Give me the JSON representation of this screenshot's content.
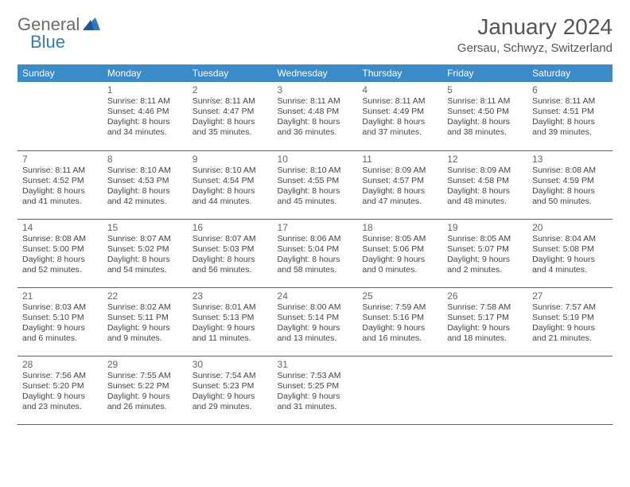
{
  "logo": {
    "general": "General",
    "blue": "Blue"
  },
  "title": "January 2024",
  "location": "Gersau, Schwyz, Switzerland",
  "colors": {
    "header_bg": "#3b8bc9",
    "header_text": "#ffffff",
    "row_border": "#2f6fa8",
    "logo_gray": "#6b6b6b",
    "logo_blue": "#2f7bbf",
    "title_color": "#555555",
    "body_text": "#444444",
    "background": "#ffffff"
  },
  "weekdays": [
    "Sunday",
    "Monday",
    "Tuesday",
    "Wednesday",
    "Thursday",
    "Friday",
    "Saturday"
  ],
  "weeks": [
    [
      null,
      {
        "n": "1",
        "sr": "Sunrise: 8:11 AM",
        "ss": "Sunset: 4:46 PM",
        "d1": "Daylight: 8 hours",
        "d2": "and 34 minutes."
      },
      {
        "n": "2",
        "sr": "Sunrise: 8:11 AM",
        "ss": "Sunset: 4:47 PM",
        "d1": "Daylight: 8 hours",
        "d2": "and 35 minutes."
      },
      {
        "n": "3",
        "sr": "Sunrise: 8:11 AM",
        "ss": "Sunset: 4:48 PM",
        "d1": "Daylight: 8 hours",
        "d2": "and 36 minutes."
      },
      {
        "n": "4",
        "sr": "Sunrise: 8:11 AM",
        "ss": "Sunset: 4:49 PM",
        "d1": "Daylight: 8 hours",
        "d2": "and 37 minutes."
      },
      {
        "n": "5",
        "sr": "Sunrise: 8:11 AM",
        "ss": "Sunset: 4:50 PM",
        "d1": "Daylight: 8 hours",
        "d2": "and 38 minutes."
      },
      {
        "n": "6",
        "sr": "Sunrise: 8:11 AM",
        "ss": "Sunset: 4:51 PM",
        "d1": "Daylight: 8 hours",
        "d2": "and 39 minutes."
      }
    ],
    [
      {
        "n": "7",
        "sr": "Sunrise: 8:11 AM",
        "ss": "Sunset: 4:52 PM",
        "d1": "Daylight: 8 hours",
        "d2": "and 41 minutes."
      },
      {
        "n": "8",
        "sr": "Sunrise: 8:10 AM",
        "ss": "Sunset: 4:53 PM",
        "d1": "Daylight: 8 hours",
        "d2": "and 42 minutes."
      },
      {
        "n": "9",
        "sr": "Sunrise: 8:10 AM",
        "ss": "Sunset: 4:54 PM",
        "d1": "Daylight: 8 hours",
        "d2": "and 44 minutes."
      },
      {
        "n": "10",
        "sr": "Sunrise: 8:10 AM",
        "ss": "Sunset: 4:55 PM",
        "d1": "Daylight: 8 hours",
        "d2": "and 45 minutes."
      },
      {
        "n": "11",
        "sr": "Sunrise: 8:09 AM",
        "ss": "Sunset: 4:57 PM",
        "d1": "Daylight: 8 hours",
        "d2": "and 47 minutes."
      },
      {
        "n": "12",
        "sr": "Sunrise: 8:09 AM",
        "ss": "Sunset: 4:58 PM",
        "d1": "Daylight: 8 hours",
        "d2": "and 48 minutes."
      },
      {
        "n": "13",
        "sr": "Sunrise: 8:08 AM",
        "ss": "Sunset: 4:59 PM",
        "d1": "Daylight: 8 hours",
        "d2": "and 50 minutes."
      }
    ],
    [
      {
        "n": "14",
        "sr": "Sunrise: 8:08 AM",
        "ss": "Sunset: 5:00 PM",
        "d1": "Daylight: 8 hours",
        "d2": "and 52 minutes."
      },
      {
        "n": "15",
        "sr": "Sunrise: 8:07 AM",
        "ss": "Sunset: 5:02 PM",
        "d1": "Daylight: 8 hours",
        "d2": "and 54 minutes."
      },
      {
        "n": "16",
        "sr": "Sunrise: 8:07 AM",
        "ss": "Sunset: 5:03 PM",
        "d1": "Daylight: 8 hours",
        "d2": "and 56 minutes."
      },
      {
        "n": "17",
        "sr": "Sunrise: 8:06 AM",
        "ss": "Sunset: 5:04 PM",
        "d1": "Daylight: 8 hours",
        "d2": "and 58 minutes."
      },
      {
        "n": "18",
        "sr": "Sunrise: 8:05 AM",
        "ss": "Sunset: 5:06 PM",
        "d1": "Daylight: 9 hours",
        "d2": "and 0 minutes."
      },
      {
        "n": "19",
        "sr": "Sunrise: 8:05 AM",
        "ss": "Sunset: 5:07 PM",
        "d1": "Daylight: 9 hours",
        "d2": "and 2 minutes."
      },
      {
        "n": "20",
        "sr": "Sunrise: 8:04 AM",
        "ss": "Sunset: 5:08 PM",
        "d1": "Daylight: 9 hours",
        "d2": "and 4 minutes."
      }
    ],
    [
      {
        "n": "21",
        "sr": "Sunrise: 8:03 AM",
        "ss": "Sunset: 5:10 PM",
        "d1": "Daylight: 9 hours",
        "d2": "and 6 minutes."
      },
      {
        "n": "22",
        "sr": "Sunrise: 8:02 AM",
        "ss": "Sunset: 5:11 PM",
        "d1": "Daylight: 9 hours",
        "d2": "and 9 minutes."
      },
      {
        "n": "23",
        "sr": "Sunrise: 8:01 AM",
        "ss": "Sunset: 5:13 PM",
        "d1": "Daylight: 9 hours",
        "d2": "and 11 minutes."
      },
      {
        "n": "24",
        "sr": "Sunrise: 8:00 AM",
        "ss": "Sunset: 5:14 PM",
        "d1": "Daylight: 9 hours",
        "d2": "and 13 minutes."
      },
      {
        "n": "25",
        "sr": "Sunrise: 7:59 AM",
        "ss": "Sunset: 5:16 PM",
        "d1": "Daylight: 9 hours",
        "d2": "and 16 minutes."
      },
      {
        "n": "26",
        "sr": "Sunrise: 7:58 AM",
        "ss": "Sunset: 5:17 PM",
        "d1": "Daylight: 9 hours",
        "d2": "and 18 minutes."
      },
      {
        "n": "27",
        "sr": "Sunrise: 7:57 AM",
        "ss": "Sunset: 5:19 PM",
        "d1": "Daylight: 9 hours",
        "d2": "and 21 minutes."
      }
    ],
    [
      {
        "n": "28",
        "sr": "Sunrise: 7:56 AM",
        "ss": "Sunset: 5:20 PM",
        "d1": "Daylight: 9 hours",
        "d2": "and 23 minutes."
      },
      {
        "n": "29",
        "sr": "Sunrise: 7:55 AM",
        "ss": "Sunset: 5:22 PM",
        "d1": "Daylight: 9 hours",
        "d2": "and 26 minutes."
      },
      {
        "n": "30",
        "sr": "Sunrise: 7:54 AM",
        "ss": "Sunset: 5:23 PM",
        "d1": "Daylight: 9 hours",
        "d2": "and 29 minutes."
      },
      {
        "n": "31",
        "sr": "Sunrise: 7:53 AM",
        "ss": "Sunset: 5:25 PM",
        "d1": "Daylight: 9 hours",
        "d2": "and 31 minutes."
      },
      null,
      null,
      null
    ]
  ]
}
